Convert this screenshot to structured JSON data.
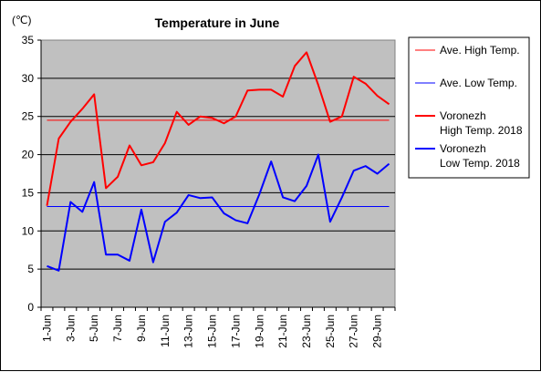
{
  "chart_data": {
    "type": "line",
    "title": "Temperature in June",
    "y_unit": "(℃)",
    "ylim": [
      0,
      35
    ],
    "y_ticks": [
      0,
      5,
      10,
      15,
      20,
      25,
      30,
      35
    ],
    "grid": true,
    "legend_position": "right",
    "plot_background": "#c0c0c0",
    "categories": [
      "1-Jun",
      "2-Jun",
      "3-Jun",
      "4-Jun",
      "5-Jun",
      "6-Jun",
      "7-Jun",
      "8-Jun",
      "9-Jun",
      "10-Jun",
      "11-Jun",
      "12-Jun",
      "13-Jun",
      "14-Jun",
      "15-Jun",
      "16-Jun",
      "17-Jun",
      "18-Jun",
      "19-Jun",
      "20-Jun",
      "21-Jun",
      "22-Jun",
      "23-Jun",
      "24-Jun",
      "25-Jun",
      "26-Jun",
      "27-Jun",
      "28-Jun",
      "29-Jun",
      "30-Jun"
    ],
    "tick_labels": [
      "1-Jun",
      "3-Jun",
      "5-Jun",
      "7-Jun",
      "9-Jun",
      "11-Jun",
      "13-Jun",
      "15-Jun",
      "17-Jun",
      "19-Jun",
      "21-Jun",
      "23-Jun",
      "25-Jun",
      "27-Jun",
      "29-Jun"
    ],
    "series": [
      {
        "name": "Ave. High Temp.",
        "color": "#ff0000",
        "width": 1,
        "values": [
          24.5,
          24.5,
          24.5,
          24.5,
          24.5,
          24.5,
          24.5,
          24.5,
          24.5,
          24.5,
          24.5,
          24.5,
          24.5,
          24.5,
          24.5,
          24.5,
          24.5,
          24.5,
          24.5,
          24.5,
          24.5,
          24.5,
          24.5,
          24.5,
          24.5,
          24.5,
          24.5,
          24.5,
          24.5,
          24.5
        ]
      },
      {
        "name": "Ave. Low Temp.",
        "color": "#0000ff",
        "width": 1,
        "values": [
          13.2,
          13.2,
          13.2,
          13.2,
          13.2,
          13.2,
          13.2,
          13.2,
          13.2,
          13.2,
          13.2,
          13.2,
          13.2,
          13.2,
          13.2,
          13.2,
          13.2,
          13.2,
          13.2,
          13.2,
          13.2,
          13.2,
          13.2,
          13.2,
          13.2,
          13.2,
          13.2,
          13.2,
          13.2,
          13.2
        ]
      },
      {
        "name": "Voronezh High Temp. 2018",
        "color": "#ff0000",
        "width": 2,
        "values": [
          13.3,
          22.1,
          24.3,
          26.0,
          27.9,
          15.6,
          17.1,
          21.2,
          18.6,
          19.0,
          21.5,
          25.6,
          23.9,
          25.0,
          24.8,
          24.1,
          25.0,
          28.4,
          28.5,
          28.5,
          27.6,
          31.6,
          33.4,
          29.1,
          24.3,
          25.0,
          30.2,
          29.3,
          27.7,
          26.6
        ]
      },
      {
        "name": "Voronezh Low Temp. 2018",
        "color": "#0000ff",
        "width": 2,
        "values": [
          5.4,
          4.8,
          13.8,
          12.5,
          16.4,
          6.9,
          6.9,
          6.1,
          12.8,
          5.9,
          11.2,
          12.4,
          14.7,
          14.3,
          14.4,
          12.3,
          11.4,
          11.0,
          14.8,
          19.1,
          14.4,
          13.9,
          15.9,
          20.0,
          11.2,
          14.4,
          17.9,
          18.5,
          17.5,
          18.8
        ]
      }
    ],
    "legend": [
      {
        "lines": [
          "Ave. High Temp."
        ],
        "color": "#ff0000",
        "width": 1
      },
      {
        "lines": [
          "Ave. Low Temp."
        ],
        "color": "#0000ff",
        "width": 1
      },
      {
        "lines": [
          "Voronezh",
          "High Temp. 2018"
        ],
        "color": "#ff0000",
        "width": 2
      },
      {
        "lines": [
          "Voronezh",
          "Low Temp. 2018"
        ],
        "color": "#0000ff",
        "width": 2
      }
    ]
  }
}
